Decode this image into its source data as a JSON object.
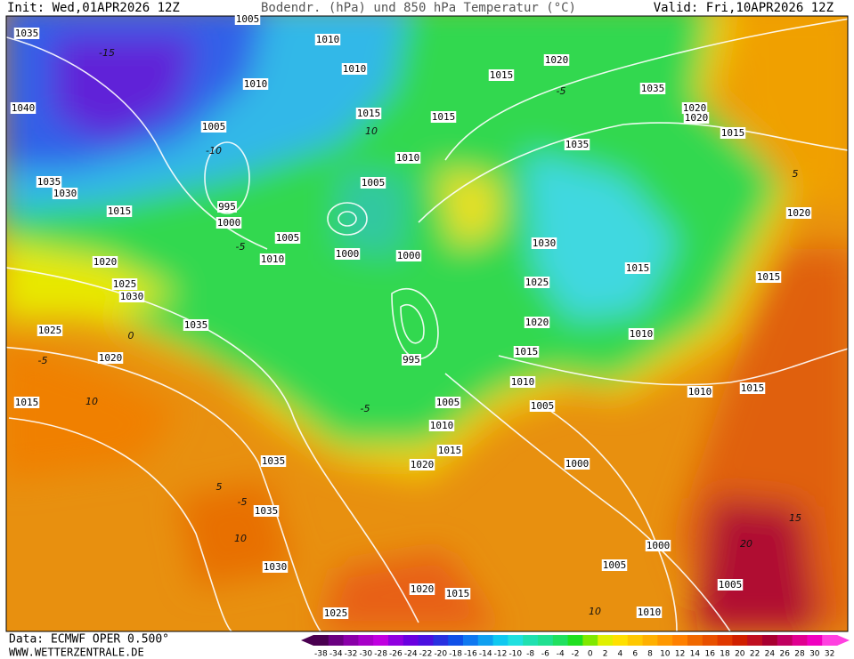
{
  "header": {
    "init": "Init: Wed,01APR2026 12Z",
    "title": "Bodendr. (hPa) und 850 hPa Temperatur (°C)",
    "valid": "Valid: Fri,10APR2026 12Z"
  },
  "map": {
    "isobar_labels": [
      "1035",
      "1010",
      "1005",
      "1010",
      "1010",
      "1040",
      "1005",
      "1015",
      "1015",
      "1015",
      "1020",
      "1035",
      "1020",
      "1020",
      "1015",
      "1035",
      "1010",
      "1005",
      "1035",
      "1030",
      "1015",
      "995",
      "1000",
      "1005",
      "1000",
      "1000",
      "1010",
      "1030",
      "1020",
      "1020",
      "1025",
      "1030",
      "1025",
      "1015",
      "1015",
      "1035",
      "1025",
      "1020",
      "1010",
      "1020",
      "995",
      "1015",
      "1010",
      "1010",
      "1015",
      "1015",
      "1005",
      "1005",
      "1010",
      "1015",
      "1020",
      "1000",
      "1035",
      "1035",
      "1000",
      "1030",
      "1005",
      "1005",
      "1020",
      "1015",
      "1010",
      "1025"
    ],
    "temperature_labels": [
      "-15",
      "10",
      "-5",
      "-5",
      "0",
      "-5",
      "10",
      "-5",
      "5",
      "-5",
      "10",
      "15",
      "20",
      "10",
      "5",
      "-10"
    ]
  },
  "colorbar": {
    "ticks": [
      -38,
      -34,
      -32,
      -30,
      -28,
      -26,
      -24,
      -22,
      -20,
      -18,
      -16,
      -14,
      -12,
      -10,
      -8,
      -6,
      -4,
      -2,
      0,
      2,
      4,
      6,
      8,
      10,
      12,
      14,
      16,
      18,
      20,
      22,
      24,
      26,
      28,
      30,
      32
    ],
    "colors": [
      "#4a0050",
      "#6a0080",
      "#8a00a8",
      "#a800c8",
      "#c000e0",
      "#9000e0",
      "#6a00e0",
      "#4a10e0",
      "#2830e0",
      "#1050e8",
      "#1078f0",
      "#10a0f0",
      "#10c8f0",
      "#20e0e0",
      "#20e0b0",
      "#20e090",
      "#20e060",
      "#20e020",
      "#80e800",
      "#e0f000",
      "#ffe000",
      "#ffc800",
      "#ffb000",
      "#ff9800",
      "#ff8000",
      "#f06800",
      "#e85000",
      "#e03800",
      "#d02000",
      "#c01020",
      "#a80030",
      "#c00060",
      "#e00090",
      "#f000c0",
      "#ff40e0"
    ]
  },
  "footer": {
    "source": "Data: ECMWF OPER 0.500°",
    "website": "WWW.WETTERZENTRALE.DE"
  }
}
